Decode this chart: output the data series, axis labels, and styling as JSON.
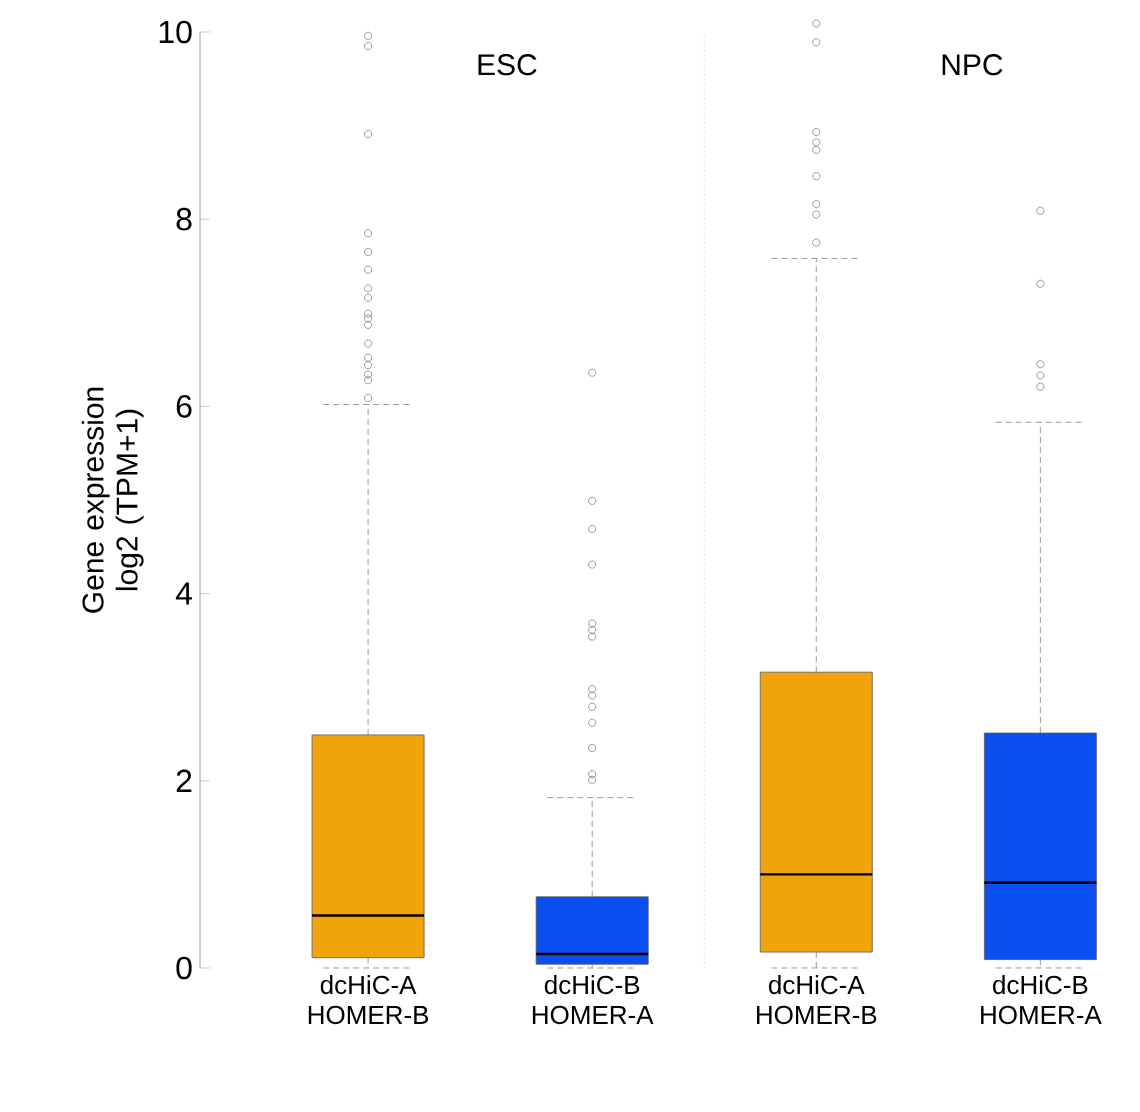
{
  "chart_data": {
    "type": "box",
    "ylabel": "Gene expression log2 (TPM+1)",
    "categories": [
      "dcHiC-A HOMER-B",
      "dcHiC-B HOMER-A",
      "dcHiC-A HOMER-B",
      "dcHiC-B HOMER-A"
    ],
    "colors": [
      "#f0a30a",
      "#0b4ff0",
      "#f0a30a",
      "#0b4ff0"
    ],
    "boxes": [
      {
        "low": 0,
        "q1": 0.11,
        "median": 0.56,
        "q3": 2.49,
        "high": 6.02,
        "outliers": [
          9.96,
          9.85,
          8.91,
          7.85,
          7.65,
          7.46,
          7.26,
          7.16,
          6.99,
          6.94,
          6.87,
          6.67,
          6.52,
          6.44,
          6.34,
          6.28,
          6.09
        ]
      },
      {
        "low": 0,
        "q1": 0.04,
        "median": 0.15,
        "q3": 0.76,
        "high": 1.82,
        "outliers": [
          6.36,
          4.99,
          4.69,
          4.31,
          3.68,
          3.61,
          3.54,
          2.98,
          2.91,
          2.79,
          2.62,
          2.35,
          2.07,
          2.01
        ]
      },
      {
        "low": 0,
        "q1": 0.17,
        "median": 1.0,
        "q3": 3.16,
        "high": 7.58,
        "outliers": [
          10.09,
          9.89,
          8.93,
          8.82,
          8.74,
          8.46,
          8.16,
          8.05,
          7.75
        ]
      },
      {
        "low": 0,
        "q1": 0.09,
        "median": 0.91,
        "q3": 2.51,
        "high": 5.83,
        "outliers": [
          8.09,
          7.31,
          6.45,
          6.33,
          6.21
        ]
      }
    ],
    "ylim": [
      0,
      10
    ],
    "yticks": [
      0,
      2,
      4,
      6,
      8,
      10
    ],
    "annotations": [
      "ESC",
      "NPC"
    ],
    "marker": "circle",
    "grid": false
  }
}
